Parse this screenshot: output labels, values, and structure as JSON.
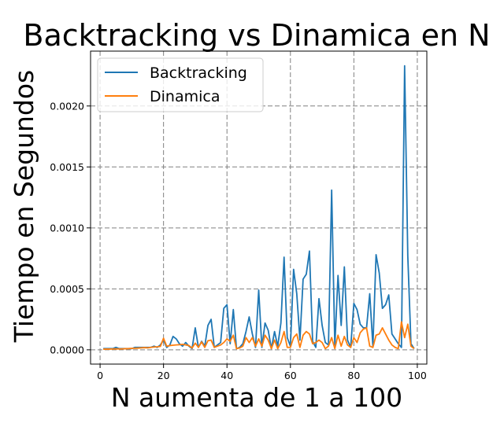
{
  "chart_data": {
    "type": "line",
    "title": "Backtracking vs Dinamica en N",
    "xlabel": "N aumenta de 1 a 100",
    "ylabel": "Tiempo en Segundos",
    "xlim": [
      -3,
      103
    ],
    "ylim": [
      -0.000117,
      0.00245
    ],
    "xticks": [
      0,
      20,
      40,
      60,
      80,
      100
    ],
    "yticks": [
      0.0,
      0.0005,
      0.001,
      0.0015,
      0.002
    ],
    "xtick_labels": [
      "0",
      "20",
      "40",
      "60",
      "80",
      "100"
    ],
    "ytick_labels": [
      "0.0000",
      "0.0005",
      "0.0010",
      "0.0015",
      "0.0020"
    ],
    "grid": true,
    "grid_style": "dashed",
    "legend_position": "top-left",
    "x": [
      1,
      2,
      3,
      4,
      5,
      6,
      7,
      8,
      9,
      10,
      11,
      12,
      13,
      14,
      15,
      16,
      17,
      18,
      19,
      20,
      21,
      22,
      23,
      24,
      25,
      26,
      27,
      28,
      29,
      30,
      31,
      32,
      33,
      34,
      35,
      36,
      37,
      38,
      39,
      40,
      41,
      42,
      43,
      44,
      45,
      46,
      47,
      48,
      49,
      50,
      51,
      52,
      53,
      54,
      55,
      56,
      57,
      58,
      59,
      60,
      61,
      62,
      63,
      64,
      65,
      66,
      67,
      68,
      69,
      70,
      71,
      72,
      73,
      74,
      75,
      76,
      77,
      78,
      79,
      80,
      81,
      82,
      83,
      84,
      85,
      86,
      87,
      88,
      89,
      90,
      91,
      92,
      93,
      94,
      95,
      96,
      97,
      98,
      99
    ],
    "series": [
      {
        "name": "Backtracking",
        "color": "#1f77b4",
        "values": [
          1e-05,
          1e-05,
          1e-05,
          1e-05,
          2e-05,
          1e-05,
          1e-05,
          1e-05,
          1e-05,
          1e-05,
          2e-05,
          2e-05,
          2e-05,
          2e-05,
          2e-05,
          2e-05,
          3e-05,
          2e-05,
          4e-05,
          8e-05,
          2e-05,
          4e-05,
          0.00011,
          9e-05,
          5e-05,
          3e-05,
          6e-05,
          3e-05,
          1e-05,
          0.00018,
          2e-05,
          7e-05,
          3e-05,
          0.0002,
          0.00025,
          2e-05,
          4e-05,
          6e-05,
          0.00034,
          0.00037,
          5e-05,
          0.00033,
          1e-05,
          2e-05,
          5e-05,
          0.00015,
          0.00027,
          0.00013,
          2e-05,
          0.00049,
          2e-05,
          0.00022,
          0.00016,
          1e-05,
          0.00015,
          3e-05,
          0.00022,
          0.00076,
          0.0001,
          3e-05,
          0.00066,
          0.00046,
          8e-05,
          0.00058,
          0.00062,
          0.00081,
          7e-05,
          2e-05,
          0.00042,
          0.0002,
          6e-05,
          4e-05,
          0.00131,
          3e-05,
          0.00061,
          0.0002,
          0.00068,
          8e-05,
          2e-05,
          0.00038,
          0.00033,
          0.00021,
          0.00018,
          0.00018,
          0.00046,
          3e-05,
          0.00078,
          0.00063,
          0.00034,
          0.00037,
          0.00045,
          0.00013,
          9e-05,
          5e-05,
          2e-05,
          0.00233,
          0.00077,
          5e-05,
          1e-05
        ]
      },
      {
        "name": "Dinamica",
        "color": "#ff7f0e",
        "values": [
          5e-06,
          6e-06,
          6e-06,
          7e-06,
          8e-06,
          7e-06,
          8e-06,
          9e-06,
          1e-05,
          1.2e-05,
          1.3e-05,
          1.4e-05,
          1.6e-05,
          1.8e-05,
          1.6e-05,
          2e-05,
          2.3e-05,
          2.5e-05,
          2.8e-05,
          9.5e-05,
          3e-05,
          3.5e-05,
          3.8e-05,
          4e-05,
          4.2e-05,
          4.5e-05,
          4e-05,
          3.5e-05,
          1.5e-05,
          5.5e-05,
          2e-05,
          6.5e-05,
          2e-05,
          7.5e-05,
          8e-05,
          2e-05,
          3e-05,
          4e-05,
          6e-05,
          9e-05,
          7e-05,
          0.00012,
          1e-05,
          1.5e-05,
          3e-05,
          0.0001,
          6e-05,
          0.0001,
          3e-05,
          9e-05,
          3e-05,
          0.00012,
          8e-05,
          1e-05,
          8e-05,
          1e-05,
          6e-05,
          0.00015,
          2e-05,
          2e-05,
          0.0001,
          0.00013,
          2e-05,
          0.00012,
          0.00015,
          0.00013,
          5e-05,
          6e-05,
          8e-05,
          6e-05,
          1e-05,
          3e-05,
          0.0001,
          1e-05,
          0.00012,
          3e-05,
          0.00011,
          4e-05,
          2e-05,
          0.0001,
          6e-05,
          0.00014,
          0.00017,
          0.00018,
          3e-05,
          2e-05,
          0.00012,
          0.00013,
          0.00018,
          0.00013,
          8e-05,
          4e-05,
          2e-05,
          1e-05,
          0.00023,
          0.0001,
          0.00021,
          3e-05,
          1e-05
        ]
      }
    ]
  }
}
